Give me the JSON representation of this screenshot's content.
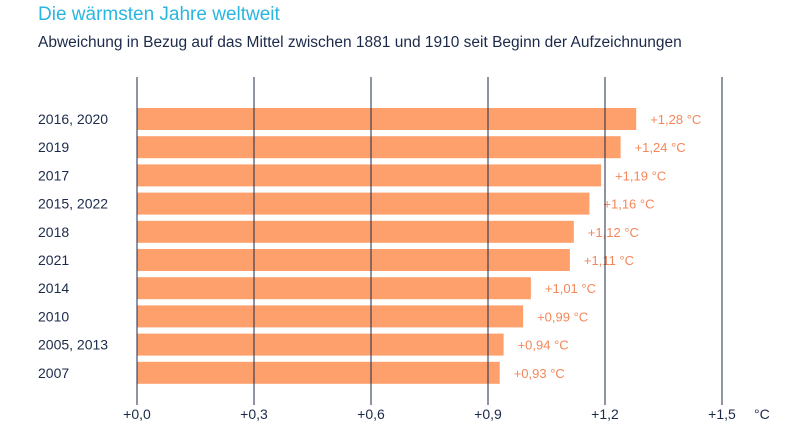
{
  "chart_data": {
    "type": "bar",
    "orientation": "horizontal",
    "title": "Die wärmsten Jahre weltweit",
    "subtitle": "Abweichung in Bezug auf das Mittel zwischen 1881 und 1910 seit Beginn der Aufzeichnungen",
    "categories": [
      "2016, 2020",
      "2019",
      "2017",
      "2015, 2022",
      "2018",
      "2021",
      "2014",
      "2010",
      "2005, 2013",
      "2007"
    ],
    "values": [
      1.28,
      1.24,
      1.19,
      1.16,
      1.12,
      1.11,
      1.01,
      0.99,
      0.94,
      0.93
    ],
    "value_labels": [
      "+1,28 °C",
      "+1,24 °C",
      "+1,19 °C",
      "+1,16 °C",
      "+1,12 °C",
      "+1,11 °C",
      "+1,01 °C",
      "+0,99 °C",
      "+0,94 °C",
      "+0,93 °C"
    ],
    "xlim": [
      0,
      1.5
    ],
    "xticks": [
      0,
      0.3,
      0.6,
      0.9,
      1.2,
      1.5
    ],
    "xtick_labels": [
      "+0,0",
      "+0,3",
      "+0,6",
      "+0,9",
      "+1,2",
      "+1,5"
    ],
    "xunit": "°C",
    "grid": true,
    "colors": {
      "bar": "#fea06c",
      "value_label": "#f4875a",
      "title": "#29b6e0",
      "text": "#1c2a4a"
    }
  }
}
